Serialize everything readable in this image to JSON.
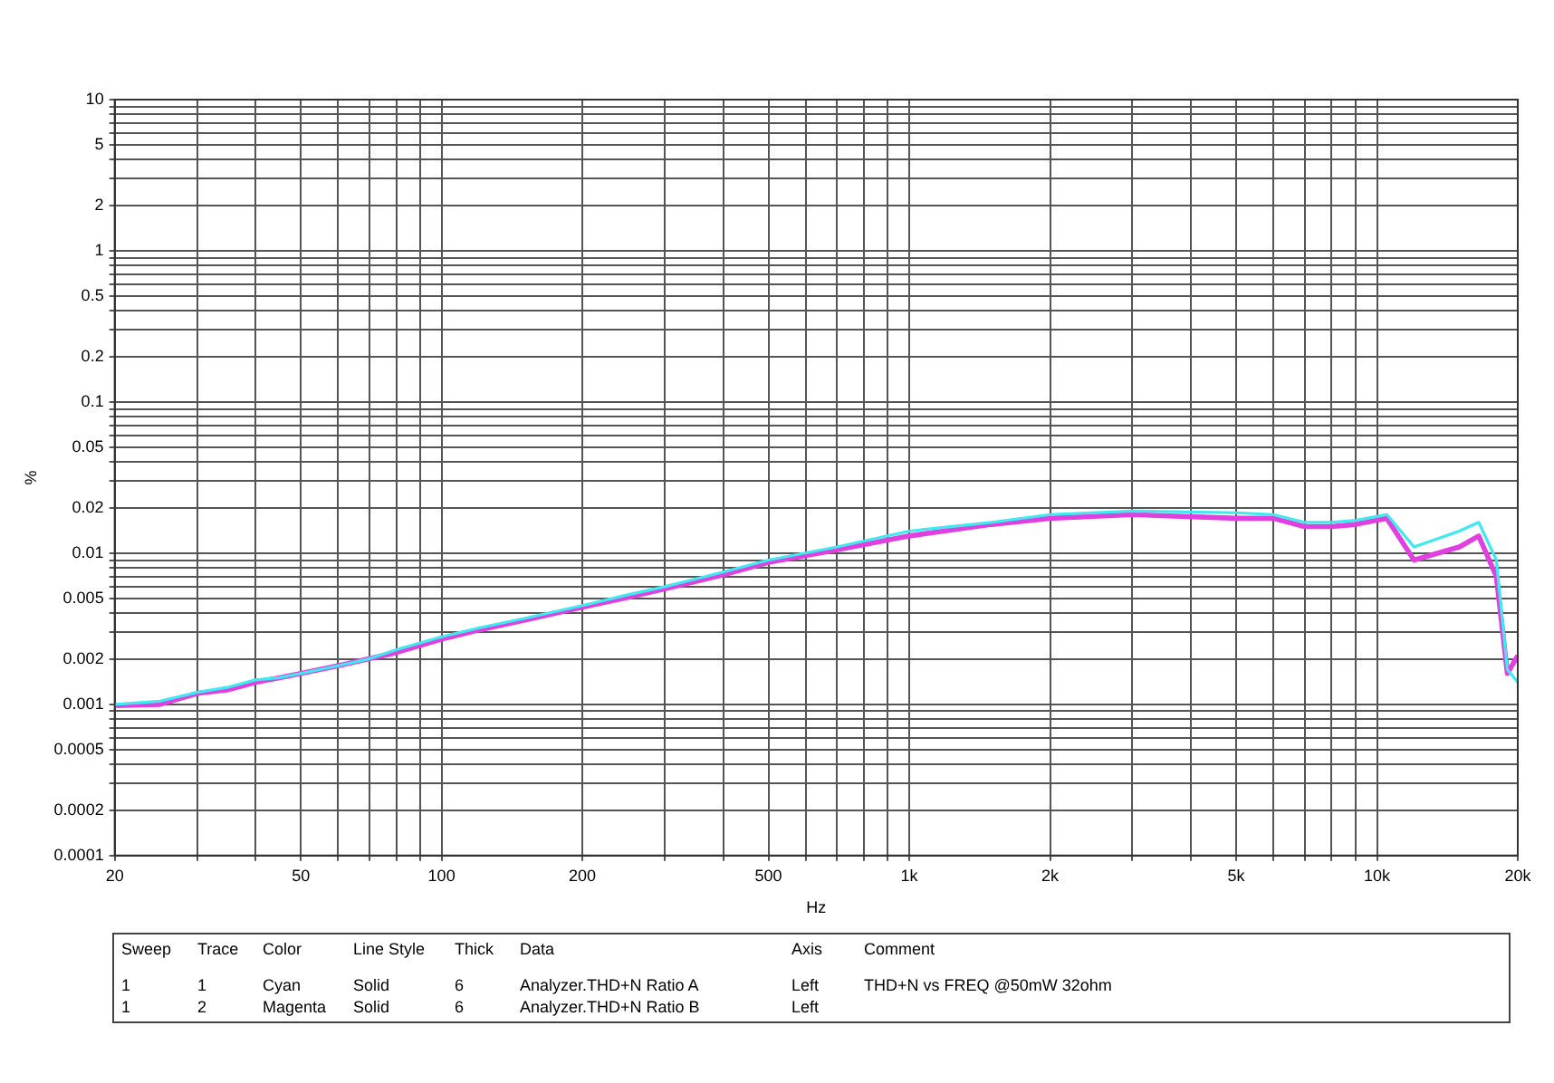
{
  "chart_data": {
    "type": "line",
    "xlabel": "Hz",
    "ylabel": "%",
    "log": "xy",
    "grid": true,
    "legend": false,
    "marker": "none",
    "line_style": "solid",
    "xlim": [
      20,
      20000
    ],
    "ylim": [
      0.0001,
      10
    ],
    "xticks": [
      20,
      {
        "value": 30,
        "label": null
      },
      {
        "value": 40,
        "label": null
      },
      50,
      {
        "value": 60,
        "label": null
      },
      {
        "value": 70,
        "label": null
      },
      {
        "value": 80,
        "label": null
      },
      {
        "value": 90,
        "label": null
      },
      100,
      200,
      {
        "value": 300,
        "label": null
      },
      {
        "value": 400,
        "label": null
      },
      500,
      {
        "value": 600,
        "label": null
      },
      {
        "value": 700,
        "label": null
      },
      {
        "value": 800,
        "label": null
      },
      {
        "value": 900,
        "label": null
      },
      {
        "value": 1000,
        "label": "1k"
      },
      {
        "value": 2000,
        "label": "2k"
      },
      {
        "value": 3000,
        "label": null
      },
      {
        "value": 4000,
        "label": null
      },
      {
        "value": 5000,
        "label": "5k"
      },
      {
        "value": 6000,
        "label": null
      },
      {
        "value": 7000,
        "label": null
      },
      {
        "value": 8000,
        "label": null
      },
      {
        "value": 9000,
        "label": null
      },
      {
        "value": 10000,
        "label": "10k"
      },
      {
        "value": 20000,
        "label": "20k"
      }
    ],
    "yticks": [
      0.0001,
      0.0002,
      {
        "value": 0.0003,
        "label": null
      },
      {
        "value": 0.0004,
        "label": null
      },
      0.0005,
      {
        "value": 0.0006,
        "label": null
      },
      {
        "value": 0.0007,
        "label": null
      },
      {
        "value": 0.0008,
        "label": null
      },
      {
        "value": 0.0009,
        "label": null
      },
      0.001,
      0.002,
      {
        "value": 0.003,
        "label": null
      },
      {
        "value": 0.004,
        "label": null
      },
      0.005,
      {
        "value": 0.006,
        "label": null
      },
      {
        "value": 0.007,
        "label": null
      },
      {
        "value": 0.008,
        "label": null
      },
      {
        "value": 0.009,
        "label": null
      },
      0.01,
      0.02,
      {
        "value": 0.03,
        "label": null
      },
      {
        "value": 0.04,
        "label": null
      },
      0.05,
      {
        "value": 0.06,
        "label": null
      },
      {
        "value": 0.07,
        "label": null
      },
      {
        "value": 0.08,
        "label": null
      },
      {
        "value": 0.09,
        "label": null
      },
      0.1,
      0.2,
      {
        "value": 0.3,
        "label": null
      },
      {
        "value": 0.4,
        "label": null
      },
      0.5,
      {
        "value": 0.6,
        "label": null
      },
      {
        "value": 0.7,
        "label": null
      },
      {
        "value": 0.8,
        "label": null
      },
      {
        "value": 0.9,
        "label": null
      },
      1,
      2,
      {
        "value": 3,
        "label": null
      },
      {
        "value": 4,
        "label": null
      },
      5,
      {
        "value": 6,
        "label": null
      },
      {
        "value": 7,
        "label": null
      },
      {
        "value": 8,
        "label": null
      },
      {
        "value": 9,
        "label": null
      },
      10
    ],
    "x": [
      20,
      25,
      30,
      35,
      40,
      45,
      50,
      60,
      70,
      80,
      100,
      120,
      150,
      200,
      250,
      300,
      400,
      500,
      700,
      1000,
      1500,
      2000,
      3000,
      5000,
      6000,
      7000,
      8000,
      9000,
      10500,
      12000,
      15000,
      16500,
      18000,
      19000,
      20000
    ],
    "series": [
      {
        "color": "#40e8f0",
        "values": [
          0.001,
          0.00105,
          0.0012,
          0.0013,
          0.00145,
          0.0015,
          0.0016,
          0.0018,
          0.002,
          0.0023,
          0.0028,
          0.0032,
          0.0037,
          0.0045,
          0.0053,
          0.006,
          0.0075,
          0.009,
          0.011,
          0.014,
          0.016,
          0.018,
          0.019,
          0.0185,
          0.018,
          0.016,
          0.016,
          0.0165,
          0.018,
          0.011,
          0.014,
          0.016,
          0.009,
          0.0017,
          0.0014
        ]
      },
      {
        "color": "#e040e0",
        "values": [
          0.00098,
          0.001,
          0.00118,
          0.00125,
          0.0014,
          0.0015,
          0.0016,
          0.0018,
          0.002,
          0.0022,
          0.0027,
          0.0031,
          0.0036,
          0.0044,
          0.0051,
          0.0058,
          0.0072,
          0.0087,
          0.0105,
          0.013,
          0.0155,
          0.017,
          0.018,
          0.017,
          0.017,
          0.015,
          0.015,
          0.0155,
          0.017,
          0.009,
          0.011,
          0.013,
          0.007,
          0.0016,
          0.0021
        ]
      }
    ],
    "annotations": [
      "Sweep",
      "Trace",
      "Color",
      "Line Style",
      "Thick",
      "Data",
      "Axis",
      "Comment",
      "1",
      "1",
      "Cyan",
      "Solid",
      "6",
      "Analyzer.THD+N Ratio A",
      "Left",
      "THD+N vs FREQ @50mW 32ohm",
      "1",
      "2",
      "Magenta",
      "Solid",
      "6",
      "Analyzer.THD+N Ratio B",
      "Left"
    ]
  }
}
